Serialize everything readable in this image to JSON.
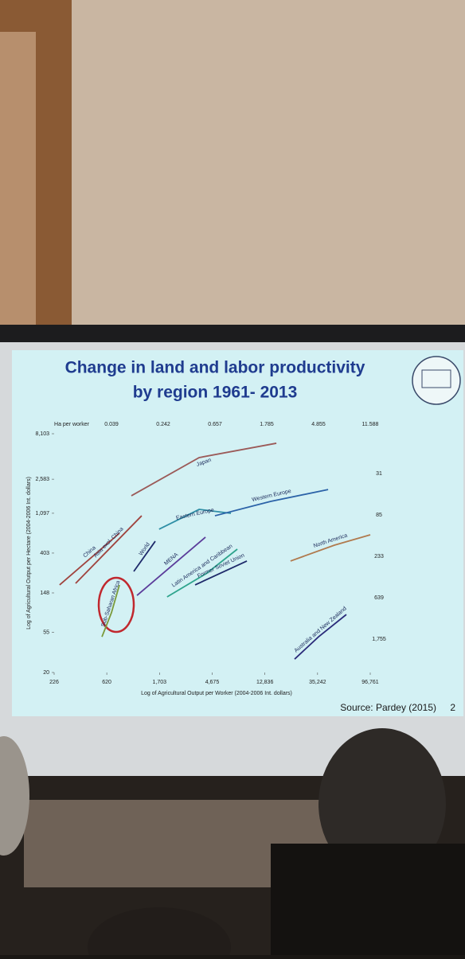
{
  "chart_data": {
    "type": "line",
    "title": "Change in land and labor productivity by region 1961- 2013",
    "source": "Source: Pardey (2015)",
    "page_number": "2",
    "x_label": "Log of Agricultural Output per Worker (2004-2006 Int. dollars)",
    "y_label": "Log of Agricultural Output per Hectare (2004-2006 Int. dollars)",
    "log_x": true,
    "log_y": true,
    "xlim": [
      226,
      96761
    ],
    "ylim": [
      20,
      8103
    ],
    "xticks": [
      226,
      620,
      {
        "value": 1703,
        "label": "1,703"
      },
      {
        "value": 4675,
        "label": "4,675"
      },
      {
        "value": 12836,
        "label": "12,836"
      },
      {
        "value": 35242,
        "label": "35,242"
      },
      {
        "value": 96761,
        "label": "96,761"
      }
    ],
    "yticks": [
      20,
      55,
      148,
      403,
      {
        "value": 1097,
        "label": "1,097"
      },
      {
        "value": 2583,
        "label": "2,583"
      },
      {
        "value": 8103,
        "label": "8,103"
      }
    ],
    "top_axis_label": "Ha per worker",
    "top_labels": [
      "0.039",
      "0.242",
      "0.657",
      "1.785",
      "4.855",
      "11.588"
    ],
    "right_labels": [
      "31",
      "85",
      "233",
      "639",
      "1,755"
    ],
    "series": [
      {
        "name": "Japan",
        "color": "#9b5a58",
        "x": [
          993,
          3640,
          16000
        ],
        "y": [
          1702,
          4450,
          6380
        ]
      },
      {
        "name": "China",
        "color": "#a0443e",
        "x": [
          251,
          790
        ],
        "y": [
          181,
          664
        ]
      },
      {
        "name": "Asia excl. China",
        "color": "#a0443e",
        "x": [
          341,
          1210
        ],
        "y": [
          188,
          1030
        ]
      },
      {
        "name": "World",
        "color": "#1e2a6a",
        "x": [
          1040,
          1570
        ],
        "y": [
          254,
          543
        ]
      },
      {
        "name": "Sub-Saharan Africa",
        "color": "#7a9a3a",
        "x": [
          565,
          678,
          790
        ],
        "y": [
          49,
          90,
          181
        ]
      },
      {
        "name": "MENA",
        "color": "#5b3c9a",
        "x": [
          1106,
          4110
        ],
        "y": [
          139,
          601
        ]
      },
      {
        "name": "Eastern Europe",
        "color": "#2f8fa6",
        "x": [
          1690,
          3640,
          6700
        ],
        "y": [
          735,
          1210,
          1096
        ]
      },
      {
        "name": "Western Europe",
        "color": "#2c63a8",
        "x": [
          4930,
          14360,
          43150
        ],
        "y": [
          1030,
          1480,
          1990
        ]
      },
      {
        "name": "Latin America and Caribbean",
        "color": "#2ea48d",
        "x": [
          1970,
          4240,
          7570
        ],
        "y": [
          134,
          244,
          445
        ]
      },
      {
        "name": "Former Soviet Union",
        "color": "#1e2a6a",
        "x": [
          3370,
          9090
        ],
        "y": [
          181,
          330
        ]
      },
      {
        "name": "North America",
        "color": "#b07a4e",
        "x": [
          21000,
          48700,
          96800
        ],
        "y": [
          330,
          492,
          638
        ]
      },
      {
        "name": "Australia and New Zealand",
        "color": "#2b2c7a",
        "x": [
          22700,
          35900,
          61200
        ],
        "y": [
          28,
          49,
          86
        ]
      }
    ]
  }
}
